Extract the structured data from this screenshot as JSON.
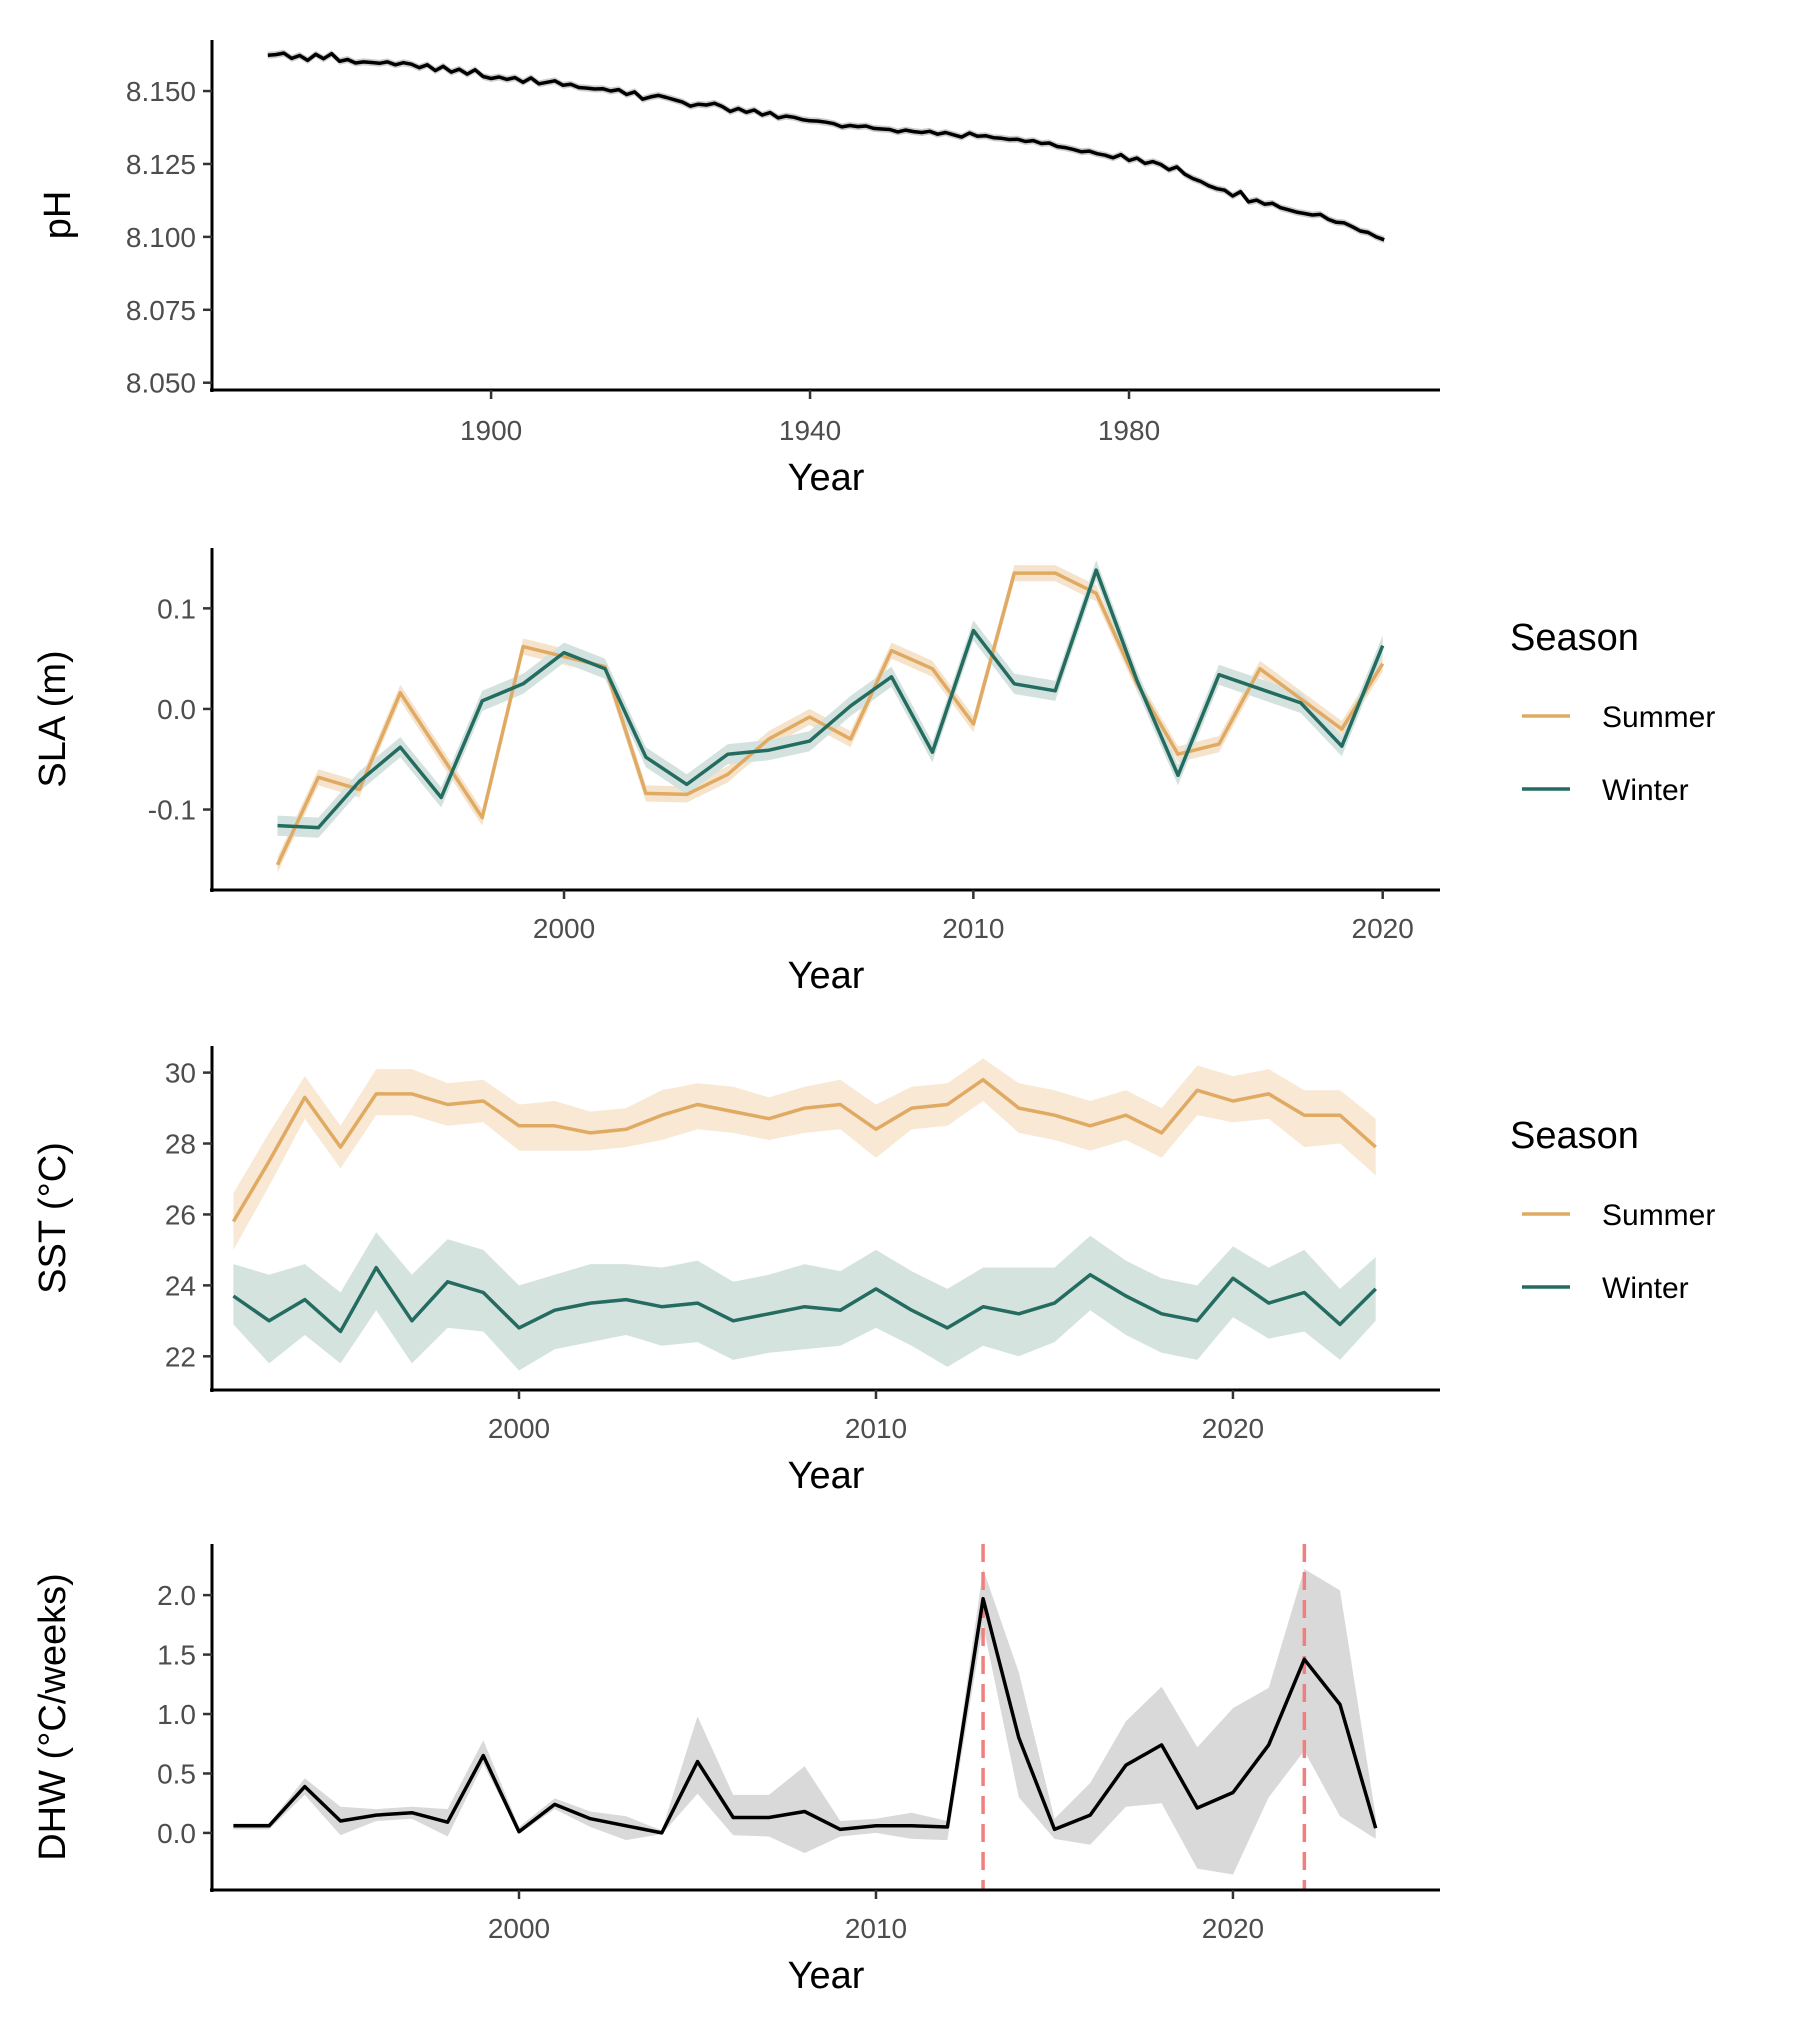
{
  "chart_data": [
    {
      "id": "ph",
      "type": "line",
      "xlabel": "Year",
      "ylabel": "pH",
      "xlim": [
        1865,
        2019
      ],
      "ylim": [
        8.0475,
        8.1675
      ],
      "xticks": [
        1900,
        1940,
        1980
      ],
      "yticks": [
        8.05,
        8.075,
        8.1,
        8.125,
        8.15
      ],
      "ytick_labels": [
        "8.050",
        "8.075",
        "8.100",
        "8.125",
        "8.150"
      ],
      "series": [
        {
          "color": "#000000",
          "band_color": "#cccccc",
          "band_halfwidth": 0.0012,
          "x": [
            1872,
            1873,
            1874,
            1875,
            1876,
            1877,
            1878,
            1879,
            1880,
            1881,
            1882,
            1883,
            1884,
            1885,
            1886,
            1887,
            1888,
            1889,
            1890,
            1891,
            1892,
            1893,
            1894,
            1895,
            1896,
            1897,
            1898,
            1899,
            1900,
            1901,
            1902,
            1903,
            1904,
            1905,
            1906,
            1907,
            1908,
            1909,
            1910,
            1911,
            1912,
            1913,
            1914,
            1915,
            1916,
            1917,
            1918,
            1919,
            1920,
            1921,
            1922,
            1923,
            1924,
            1925,
            1926,
            1927,
            1928,
            1929,
            1930,
            1931,
            1932,
            1933,
            1934,
            1935,
            1936,
            1937,
            1938,
            1939,
            1940,
            1941,
            1942,
            1943,
            1944,
            1945,
            1946,
            1947,
            1948,
            1949,
            1950,
            1951,
            1952,
            1953,
            1954,
            1955,
            1956,
            1957,
            1958,
            1959,
            1960,
            1961,
            1962,
            1963,
            1964,
            1965,
            1966,
            1967,
            1968,
            1969,
            1970,
            1971,
            1972,
            1973,
            1974,
            1975,
            1976,
            1977,
            1978,
            1979,
            1980,
            1981,
            1982,
            1983,
            1984,
            1985,
            1986,
            1987,
            1988,
            1989,
            1990,
            1991,
            1992,
            1993,
            1994,
            1995,
            1996,
            1997,
            1998,
            1999,
            2000,
            2001,
            2002,
            2003,
            2004,
            2005,
            2006,
            2007,
            2008,
            2009,
            2010,
            2011,
            2012
          ],
          "y": [
            8.1623,
            8.1625,
            8.163,
            8.1612,
            8.1622,
            8.1605,
            8.1626,
            8.1611,
            8.1628,
            8.1602,
            8.1608,
            8.1596,
            8.16,
            8.1598,
            8.1595,
            8.16,
            8.159,
            8.1597,
            8.1592,
            8.158,
            8.159,
            8.157,
            8.1585,
            8.1565,
            8.1575,
            8.1558,
            8.1573,
            8.155,
            8.1543,
            8.1548,
            8.154,
            8.1546,
            8.153,
            8.1545,
            8.1525,
            8.153,
            8.1535,
            8.152,
            8.1523,
            8.1512,
            8.151,
            8.1507,
            8.1508,
            8.15,
            8.1505,
            8.1488,
            8.1497,
            8.1472,
            8.148,
            8.1485,
            8.1478,
            8.147,
            8.1462,
            8.1448,
            8.1455,
            8.1452,
            8.1458,
            8.1447,
            8.143,
            8.144,
            8.1427,
            8.1435,
            8.1418,
            8.1426,
            8.1408,
            8.1414,
            8.141,
            8.1402,
            8.1398,
            8.1397,
            8.1393,
            8.1388,
            8.1377,
            8.1382,
            8.1378,
            8.138,
            8.1372,
            8.137,
            8.1368,
            8.136,
            8.1366,
            8.1361,
            8.1358,
            8.1362,
            8.1352,
            8.1358,
            8.135,
            8.1342,
            8.1356,
            8.1345,
            8.1347,
            8.134,
            8.1338,
            8.1334,
            8.1335,
            8.1327,
            8.133,
            8.132,
            8.1322,
            8.131,
            8.1306,
            8.13,
            8.1292,
            8.1294,
            8.1285,
            8.128,
            8.1271,
            8.1282,
            8.1262,
            8.127,
            8.1252,
            8.1258,
            8.1248,
            8.123,
            8.124,
            8.1215,
            8.12,
            8.119,
            8.1175,
            8.1165,
            8.116,
            8.114,
            8.1155,
            8.112,
            8.1126,
            8.1112,
            8.1115,
            8.11,
            8.1093,
            8.1085,
            8.108,
            8.1075,
            8.1077,
            8.106,
            8.105,
            8.1048,
            8.1035,
            8.102,
            8.1015,
            8.1,
            8.099
          ]
        }
      ]
    },
    {
      "id": "sla",
      "type": "line",
      "xlabel": "Year",
      "ylabel": "SLA (m)",
      "xlim": [
        1991.4,
        2021.4
      ],
      "ylim": [
        -0.18,
        0.16
      ],
      "xticks": [
        2000,
        2010,
        2020
      ],
      "yticks": [
        -0.1,
        0.0,
        0.1
      ],
      "ytick_labels": [
        "-0.1",
        "0.0",
        "0.1"
      ],
      "legend_title": "Season",
      "series": [
        {
          "name": "Summer",
          "color": "#e0aa63",
          "band_color": "#f5e3cc",
          "band_halfwidth": 0.008,
          "x": [
            1993,
            1994,
            1995,
            1996,
            1997,
            1998,
            1999,
            2000,
            2001,
            2002,
            2003,
            2004,
            2005,
            2006,
            2007,
            2008,
            2009,
            2010,
            2011,
            2012,
            2013,
            2014,
            2015,
            2016,
            2017,
            2018,
            2019,
            2020
          ],
          "y": [
            -0.155,
            -0.068,
            -0.08,
            0.016,
            -0.046,
            -0.108,
            0.062,
            0.052,
            0.042,
            -0.084,
            -0.085,
            -0.065,
            -0.03,
            -0.008,
            -0.03,
            0.058,
            0.04,
            -0.015,
            0.135,
            0.135,
            0.115,
            0.025,
            -0.045,
            -0.035,
            0.04,
            0.01,
            -0.02,
            0.045
          ]
        },
        {
          "name": "Winter",
          "color": "#246b60",
          "band_color": "#d3e2de",
          "band_halfwidth": 0.01,
          "x": [
            1993,
            1994,
            1995,
            1996,
            1997,
            1998,
            1999,
            2000,
            2001,
            2002,
            2003,
            2004,
            2005,
            2006,
            2007,
            2008,
            2009,
            2010,
            2011,
            2012,
            2013,
            2014,
            2015,
            2016,
            2017,
            2018,
            2019,
            2020
          ],
          "y": [
            -0.116,
            -0.118,
            -0.072,
            -0.038,
            -0.088,
            0.008,
            0.025,
            0.056,
            0.04,
            -0.048,
            -0.075,
            -0.045,
            -0.041,
            -0.032,
            0.003,
            0.032,
            -0.043,
            0.078,
            0.025,
            0.018,
            0.138,
            0.028,
            -0.066,
            0.034,
            0.02,
            0.006,
            -0.037,
            0.063
          ]
        }
      ]
    },
    {
      "id": "sst",
      "type": "line",
      "xlabel": "Year",
      "ylabel": "SST (°C)",
      "xlim": [
        1991.4,
        2025.8
      ],
      "ylim": [
        21.05,
        30.75
      ],
      "xticks": [
        2000,
        2010,
        2020
      ],
      "yticks": [
        22,
        24,
        26,
        28,
        30
      ],
      "ytick_labels": [
        "22",
        "24",
        "26",
        "28",
        "30"
      ],
      "legend_title": "Season",
      "series": [
        {
          "name": "Summer",
          "color": "#e0aa63",
          "band_color": "#f8e8d4",
          "x": [
            1992,
            1993,
            1994,
            1995,
            1996,
            1997,
            1998,
            1999,
            2000,
            2001,
            2002,
            2003,
            2004,
            2005,
            2006,
            2007,
            2008,
            2009,
            2010,
            2011,
            2012,
            2013,
            2014,
            2015,
            2016,
            2017,
            2018,
            2019,
            2020,
            2021,
            2022,
            2023,
            2024
          ],
          "y": [
            25.8,
            27.5,
            29.3,
            27.9,
            29.4,
            29.4,
            29.1,
            29.2,
            28.5,
            28.5,
            28.3,
            28.4,
            28.8,
            29.1,
            28.9,
            28.7,
            29.0,
            29.1,
            28.4,
            29.0,
            29.1,
            29.8,
            29.0,
            28.8,
            28.5,
            28.8,
            28.3,
            29.5,
            29.2,
            29.4,
            28.8,
            28.8,
            27.9
          ],
          "lower": [
            25.0,
            26.8,
            28.7,
            27.3,
            28.8,
            28.8,
            28.5,
            28.6,
            27.8,
            27.8,
            27.8,
            27.9,
            28.1,
            28.4,
            28.3,
            28.1,
            28.3,
            28.4,
            27.6,
            28.4,
            28.5,
            29.2,
            28.3,
            28.1,
            27.8,
            28.1,
            27.6,
            28.8,
            28.6,
            28.7,
            27.9,
            28.0,
            27.1
          ],
          "upper": [
            26.6,
            28.3,
            29.9,
            28.5,
            30.1,
            30.1,
            29.7,
            29.8,
            29.1,
            29.2,
            28.9,
            29.0,
            29.5,
            29.7,
            29.6,
            29.3,
            29.6,
            29.8,
            29.1,
            29.6,
            29.7,
            30.4,
            29.7,
            29.5,
            29.2,
            29.5,
            29.0,
            30.2,
            29.9,
            30.1,
            29.5,
            29.5,
            28.7
          ]
        },
        {
          "name": "Winter",
          "color": "#246b60",
          "band_color": "#d5e3df",
          "x": [
            1992,
            1993,
            1994,
            1995,
            1996,
            1997,
            1998,
            1999,
            2000,
            2001,
            2002,
            2003,
            2004,
            2005,
            2006,
            2007,
            2008,
            2009,
            2010,
            2011,
            2012,
            2013,
            2014,
            2015,
            2016,
            2017,
            2018,
            2019,
            2020,
            2021,
            2022,
            2023,
            2024
          ],
          "y": [
            23.7,
            23.0,
            23.6,
            22.7,
            24.5,
            23.0,
            24.1,
            23.8,
            22.8,
            23.3,
            23.5,
            23.6,
            23.4,
            23.5,
            23.0,
            23.2,
            23.4,
            23.3,
            23.9,
            23.3,
            22.8,
            23.4,
            23.2,
            23.5,
            24.3,
            23.7,
            23.2,
            23.0,
            24.2,
            23.5,
            23.8,
            22.9,
            23.9
          ],
          "lower": [
            22.9,
            21.8,
            22.6,
            21.8,
            23.3,
            21.8,
            22.8,
            22.7,
            21.6,
            22.2,
            22.4,
            22.6,
            22.3,
            22.4,
            21.9,
            22.1,
            22.2,
            22.3,
            22.8,
            22.3,
            21.7,
            22.3,
            22.0,
            22.4,
            23.3,
            22.6,
            22.1,
            21.9,
            23.1,
            22.5,
            22.7,
            21.9,
            23.0
          ],
          "upper": [
            24.6,
            24.3,
            24.6,
            23.8,
            25.5,
            24.3,
            25.3,
            25.0,
            24.0,
            24.3,
            24.6,
            24.6,
            24.5,
            24.7,
            24.1,
            24.3,
            24.6,
            24.4,
            25.0,
            24.4,
            23.9,
            24.5,
            24.5,
            24.5,
            25.4,
            24.7,
            24.2,
            24.0,
            25.1,
            24.5,
            25.0,
            23.9,
            24.8
          ]
        }
      ]
    },
    {
      "id": "dhw",
      "type": "line",
      "xlabel": "Year",
      "ylabel": "DHW (°C/weeks)",
      "xlim": [
        1991.4,
        2025.8
      ],
      "ylim": [
        -0.48,
        2.43
      ],
      "xticks": [
        2000,
        2010,
        2020
      ],
      "yticks": [
        0.0,
        0.5,
        1.0,
        1.5,
        2.0
      ],
      "ytick_labels": [
        "0.0",
        "0.5",
        "1.0",
        "1.5",
        "2.0"
      ],
      "vlines": [
        2013,
        2022
      ],
      "vline_color": "#f07f7f",
      "series": [
        {
          "color": "#000000",
          "band_color": "#d9d9d9",
          "x": [
            1992,
            1993,
            1994,
            1995,
            1996,
            1997,
            1998,
            1999,
            2000,
            2001,
            2002,
            2003,
            2004,
            2005,
            2006,
            2007,
            2008,
            2009,
            2010,
            2011,
            2012,
            2013,
            2014,
            2015,
            2016,
            2017,
            2018,
            2019,
            2020,
            2021,
            2022,
            2023,
            2024
          ],
          "y": [
            0.06,
            0.06,
            0.39,
            0.1,
            0.15,
            0.17,
            0.09,
            0.65,
            0.01,
            0.24,
            0.12,
            0.06,
            0.0,
            0.6,
            0.13,
            0.13,
            0.18,
            0.03,
            0.06,
            0.06,
            0.05,
            1.97,
            0.8,
            0.03,
            0.15,
            0.57,
            0.74,
            0.21,
            0.34,
            0.74,
            1.46,
            1.08,
            0.04
          ],
          "lower": [
            0.03,
            0.03,
            0.32,
            -0.02,
            0.1,
            0.12,
            -0.03,
            0.58,
            -0.01,
            0.2,
            0.05,
            -0.06,
            -0.01,
            0.33,
            -0.02,
            -0.03,
            -0.17,
            -0.03,
            0.0,
            -0.05,
            -0.06,
            1.75,
            0.3,
            -0.05,
            -0.1,
            0.22,
            0.25,
            -0.3,
            -0.35,
            0.3,
            0.69,
            0.14,
            -0.05
          ],
          "upper": [
            0.08,
            0.08,
            0.46,
            0.22,
            0.2,
            0.22,
            0.2,
            0.78,
            0.05,
            0.29,
            0.18,
            0.14,
            0.02,
            0.98,
            0.32,
            0.32,
            0.56,
            0.1,
            0.12,
            0.17,
            0.1,
            2.22,
            1.35,
            0.12,
            0.42,
            0.94,
            1.23,
            0.72,
            1.05,
            1.22,
            2.22,
            2.04,
            0.14
          ]
        }
      ]
    }
  ]
}
